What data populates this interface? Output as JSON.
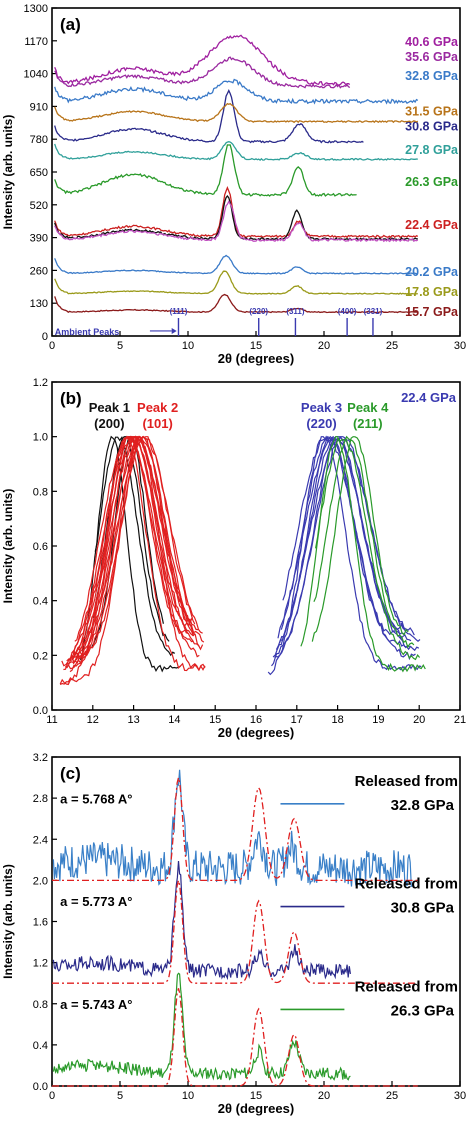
{
  "chart_data": [
    {
      "type": "line",
      "panel_label": "(a)",
      "xlabel": "2θ (degrees)",
      "ylabel": "Intensity (arb. units)",
      "xlim": [
        0,
        30
      ],
      "ylim": [
        0,
        1300
      ],
      "x_ticks": [
        0,
        5,
        10,
        15,
        20,
        25,
        30
      ],
      "y_ticks": [
        0,
        130,
        260,
        390,
        520,
        650,
        780,
        910,
        1040,
        1170,
        1300
      ],
      "series": [
        {
          "name": "15.7 GPa",
          "color": "#8b1a1a",
          "label_y": 95,
          "base": 95,
          "peaks": [
            [
              12.7,
              70,
              0.45
            ],
            [
              18.0,
              15,
              0.4
            ]
          ],
          "hump": [
            6,
            8
          ],
          "noise": 4,
          "x_end": 27
        },
        {
          "name": "17.8 GPa",
          "color": "#9a9a1a",
          "label_y": 175,
          "base": 168,
          "peaks": [
            [
              12.7,
              90,
              0.45
            ],
            [
              18.0,
              30,
              0.4
            ]
          ],
          "hump": [
            6,
            10
          ],
          "noise": 4,
          "x_end": 27
        },
        {
          "name": "20.2 GPa",
          "color": "#3a7ac8",
          "label_y": 253,
          "base": 248,
          "peaks": [
            [
              12.8,
              70,
              0.45
            ],
            [
              18.0,
              25,
              0.4
            ]
          ],
          "hump": [
            6,
            12
          ],
          "noise": 4,
          "x_end": 27
        },
        {
          "name": "22.4 GPa",
          "color": "#cc2020",
          "label_y": 440,
          "base": 395,
          "peaks": [
            [
              12.9,
              190,
              0.35
            ],
            [
              18.1,
              60,
              0.35
            ]
          ],
          "hump": [
            6,
            40
          ],
          "noise": 8,
          "x_end": 27
        },
        {
          "name": "",
          "color": "#111111",
          "label_y": 0,
          "base": 385,
          "peaks": [
            [
              12.9,
              170,
              0.35
            ],
            [
              18.0,
              110,
              0.35
            ]
          ],
          "hump": [
            6,
            35
          ],
          "noise": 8,
          "x_end": 27
        },
        {
          "name": "",
          "color": "#c050c0",
          "label_y": 0,
          "base": 380,
          "peaks": [
            [
              13.0,
              150,
              0.4
            ],
            [
              18.1,
              70,
              0.4
            ]
          ],
          "hump": [
            6,
            35
          ],
          "noise": 10,
          "x_end": 27
        },
        {
          "name": "26.3 GPa",
          "color": "#2a9a2a",
          "label_y": 610,
          "base": 560,
          "peaks": [
            [
              13.0,
              200,
              0.4
            ],
            [
              18.1,
              110,
              0.4
            ]
          ],
          "hump": [
            6,
            80
          ],
          "noise": 10,
          "x_end": 22.5
        },
        {
          "name": "27.8 GPa",
          "color": "#30a09a",
          "label_y": 738,
          "base": 700,
          "peaks": [
            [
              13.0,
              70,
              0.5
            ],
            [
              18.2,
              25,
              0.5
            ]
          ],
          "hump": [
            6,
            30
          ],
          "noise": 6,
          "x_end": 27
        },
        {
          "name": "30.8 GPa",
          "color": "#2a2a8a",
          "label_y": 830,
          "base": 770,
          "peaks": [
            [
              13.0,
              200,
              0.4
            ],
            [
              18.2,
              70,
              0.5
            ]
          ],
          "hump": [
            6,
            50
          ],
          "noise": 8,
          "x_end": 23
        },
        {
          "name": "31.5 GPa",
          "color": "#b8741a",
          "label_y": 890,
          "base": 850,
          "peaks": [
            [
              13.0,
              70,
              0.6
            ]
          ],
          "hump": [
            6,
            40
          ],
          "noise": 6,
          "x_end": 27
        },
        {
          "name": "32.8 GPa",
          "color": "#3a7ac8",
          "label_y": 1030,
          "base": 930,
          "peaks": [
            [
              13.2,
              80,
              1.2
            ]
          ],
          "hump": [
            6,
            50
          ],
          "noise": 15,
          "x_end": 27
        },
        {
          "name": "35.6 GPa",
          "color": "#9a2aa0",
          "label_y": 1105,
          "base": 990,
          "peaks": [
            [
              13.3,
              110,
              1.5
            ]
          ],
          "hump": [
            6,
            40
          ],
          "noise": 12,
          "x_end": 22
        },
        {
          "name": "40.6 GPa",
          "color": "#a020a0",
          "label_y": 1165,
          "base": 1000,
          "peaks": [
            [
              13.5,
              190,
              2.0
            ]
          ],
          "hump": [
            6,
            60
          ],
          "noise": 15,
          "x_end": 22
        }
      ],
      "ambient_peaks": {
        "label": "Ambient Peaks",
        "markers": [
          {
            "label": "(111)",
            "x": 9.3
          },
          {
            "label": "(220)",
            "x": 15.2
          },
          {
            "label": "(311)",
            "x": 17.9
          },
          {
            "label": "(400)",
            "x": 21.7
          },
          {
            "label": "(331)",
            "x": 23.6
          }
        ]
      }
    },
    {
      "type": "line",
      "panel_label": "(b)",
      "xlabel": "2θ (degrees)",
      "ylabel": "Intensity (arb. units)",
      "xlim": [
        11,
        21
      ],
      "ylim": [
        0.0,
        1.2
      ],
      "x_ticks": [
        11,
        12,
        13,
        14,
        15,
        16,
        17,
        18,
        19,
        20,
        21
      ],
      "y_ticks": [
        0.0,
        0.2,
        0.4,
        0.6,
        0.8,
        1.0,
        1.2
      ],
      "pressure_label": "22.4 GPa",
      "peaks": [
        {
          "name": "Peak 1",
          "hkl": "(200)",
          "color": "#111111",
          "center": 12.7,
          "width": 0.45,
          "count": 4,
          "x_range": [
            11.7,
            14.2
          ]
        },
        {
          "name": "Peak 2",
          "hkl": "(101)",
          "color": "#e02020",
          "center": 13.05,
          "width": 0.6,
          "count": 16,
          "x_range": [
            11.2,
            14.8
          ]
        },
        {
          "name": "Peak 3",
          "hkl": "(220)",
          "color": "#3a3ab0",
          "center": 17.9,
          "width": 0.65,
          "count": 9,
          "x_range": [
            16.3,
            20.1
          ]
        },
        {
          "name": "Peak 4",
          "hkl": "(211)",
          "color": "#2a9a2a",
          "center": 18.2,
          "width": 0.55,
          "count": 4,
          "x_range": [
            17.1,
            20.2
          ]
        }
      ]
    },
    {
      "type": "line",
      "panel_label": "(c)",
      "xlabel": "2θ (degrees)",
      "ylabel": "Intensity (arb. units)",
      "xlim": [
        0,
        30
      ],
      "ylim": [
        0.0,
        3.2
      ],
      "x_ticks": [
        0,
        5,
        10,
        15,
        20,
        25,
        30
      ],
      "y_ticks": [
        0.0,
        0.4,
        0.8,
        1.2,
        1.6,
        2.0,
        2.4,
        2.8,
        3.2
      ],
      "reference_color": "#e02020",
      "series": [
        {
          "name": "32.8 GPa",
          "legend_prefix": "Released from",
          "color": "#3a80c8",
          "lattice": "a = 5.768 A°",
          "base": 2.0,
          "peaks": [
            [
              9.3,
              0.9,
              0.3
            ],
            [
              15.2,
              0.3,
              0.4
            ],
            [
              17.6,
              0.2,
              0.4
            ]
          ],
          "ref_peaks": [
            [
              9.3,
              1.0,
              0.3
            ],
            [
              15.2,
              0.9,
              0.45
            ],
            [
              17.8,
              0.6,
              0.45
            ]
          ],
          "noise": 0.18,
          "x_end": 26.5
        },
        {
          "name": "30.8 GPa",
          "legend_prefix": "Released from",
          "color": "#2a2a8a",
          "lattice": "a = 5.773 A°",
          "base": 1.0,
          "peaks": [
            [
              9.3,
              1.0,
              0.3
            ],
            [
              15.2,
              0.15,
              0.3
            ],
            [
              17.8,
              0.2,
              0.3
            ]
          ],
          "ref_peaks": [
            [
              9.3,
              1.0,
              0.3
            ],
            [
              15.2,
              0.8,
              0.4
            ],
            [
              17.8,
              0.5,
              0.4
            ]
          ],
          "noise": 0.07,
          "x_end": 22
        },
        {
          "name": "26.3 GPa",
          "legend_prefix": "Released from",
          "color": "#2a9a2a",
          "lattice": "a = 5.743 A°",
          "base": 0.0,
          "peaks": [
            [
              9.3,
              0.95,
              0.3
            ],
            [
              15.2,
              0.22,
              0.3
            ],
            [
              17.8,
              0.3,
              0.35
            ]
          ],
          "ref_peaks": [
            [
              9.3,
              0.95,
              0.3
            ],
            [
              15.2,
              0.75,
              0.4
            ],
            [
              17.8,
              0.5,
              0.4
            ]
          ],
          "noise": 0.06,
          "x_end": 22
        }
      ]
    }
  ]
}
